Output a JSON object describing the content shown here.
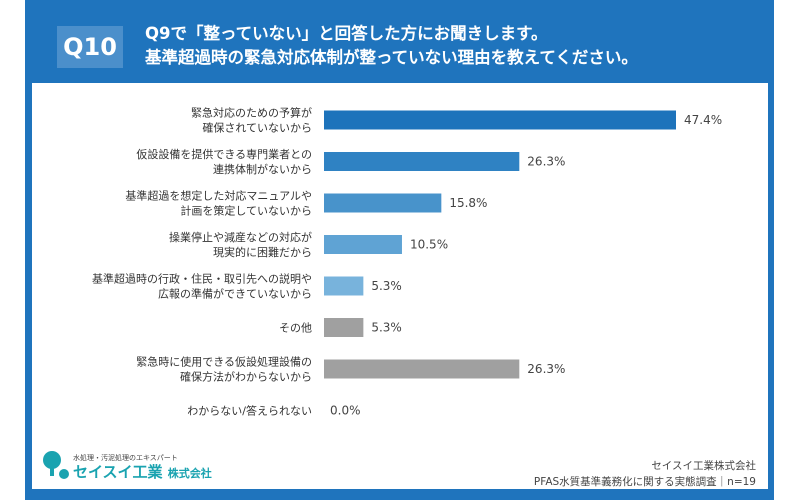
{
  "header": {
    "badge": "Q10",
    "title_line1": "Q9で「整っていない」と回答した方にお聞きします。",
    "title_line2": "基準超過時の緊急対応体制が整っていない理由を教えてください。"
  },
  "chart_data": {
    "type": "bar",
    "orientation": "horizontal",
    "categories": [
      [
        "緊急対応のための予算が",
        "確保されていないから"
      ],
      [
        "仮設設備を提供できる専門業者との",
        "連携体制がないから"
      ],
      [
        "基準超過を想定した対応マニュアルや",
        "計画を策定していないから"
      ],
      [
        "操業停止や減産などの対応が",
        "現実的に困難だから"
      ],
      [
        "基準超過時の行政・住民・取引先への説明や",
        "広報の準備ができていないから"
      ],
      [
        "その他"
      ],
      [
        "緊急時に使用できる仮設処理設備の",
        "確保方法がわからないから"
      ],
      [
        "わからない/答えられない"
      ]
    ],
    "values": [
      47.4,
      26.3,
      15.8,
      10.5,
      5.3,
      5.3,
      26.3,
      0.0
    ],
    "value_labels": [
      "47.4%",
      "26.3%",
      "15.8%",
      "10.5%",
      "5.3%",
      "5.3%",
      "26.3%",
      "0.0%"
    ],
    "colors": [
      "#1d73bb",
      "#2f82c3",
      "#4893cb",
      "#5fa3d4",
      "#78b3dc",
      "#a0a0a0",
      "#a0a0a0",
      "#a0a0a0"
    ],
    "xlim": [
      0,
      50
    ],
    "grid": false
  },
  "footer": {
    "logo_tagline": "水処理・汚泥処理のエキスパート",
    "logo_name": "セイスイ工業",
    "logo_suffix": "株式会社",
    "source_line1": "セイスイ工業株式会社",
    "source_line2": "PFAS水質基準義務化に関する実態調査｜n=19"
  }
}
